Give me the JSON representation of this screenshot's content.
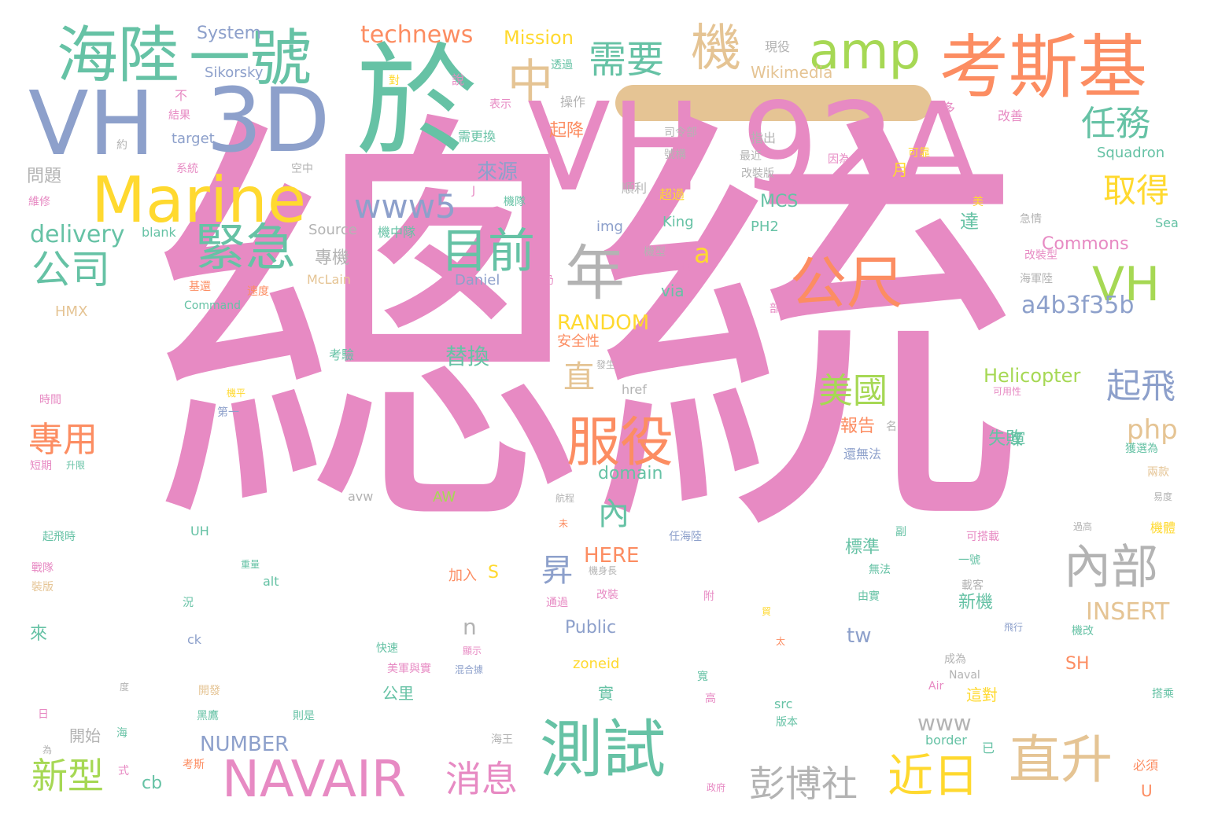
{
  "palette": {
    "pink": "#e78ac3",
    "green": "#66c2a5",
    "blue": "#8da0cb",
    "orange": "#fc8d62",
    "yellow": "#ffd92f",
    "lime": "#a6d854",
    "tan": "#e5c494",
    "gray": "#b3b3b3",
    "background": "#ffffff"
  },
  "words": [
    {
      "id": "zongtong",
      "text": "總統",
      "c": "pink"
    },
    {
      "id": "vh92a",
      "text": "VH 92A",
      "c": "pink"
    },
    {
      "id": "yu",
      "text": "於",
      "c": "green"
    },
    {
      "id": "vh",
      "text": "VH",
      "c": "blue"
    },
    {
      "id": "3d",
      "text": "3D",
      "c": "blue"
    },
    {
      "id": "haelu",
      "text": "海陸",
      "c": "green"
    },
    {
      "id": "yihao",
      "text": "一號",
      "c": "green"
    },
    {
      "id": "kaosiji",
      "text": "考斯基",
      "c": "orange"
    },
    {
      "id": "marine",
      "text": "Marine",
      "c": "yellow"
    },
    {
      "id": "amp",
      "text": "amp",
      "c": "lime"
    },
    {
      "id": "ji",
      "text": "機",
      "c": "tan"
    },
    {
      "id": "zhong",
      "text": "中",
      "c": "tan"
    },
    {
      "id": "xuyao",
      "text": "需要",
      "c": "green"
    },
    {
      "id": "technews",
      "text": "technews",
      "c": "orange"
    },
    {
      "id": "mission",
      "text": "Mission",
      "c": "yellow"
    },
    {
      "id": "system",
      "text": "System",
      "c": "blue"
    },
    {
      "id": "jinji",
      "text": "緊急",
      "c": "green"
    },
    {
      "id": "www5",
      "text": "www5",
      "c": "blue"
    },
    {
      "id": "mugian",
      "text": "目前",
      "c": "green"
    },
    {
      "id": "nian",
      "text": "年",
      "c": "gray"
    },
    {
      "id": "gongchi",
      "text": "公尺",
      "c": "orange"
    },
    {
      "id": "vh2",
      "text": "VH",
      "c": "lime"
    },
    {
      "id": "renwu",
      "text": "任務",
      "c": "green"
    },
    {
      "id": "qude",
      "text": "取得",
      "c": "yellow"
    },
    {
      "id": "gongsi",
      "text": "公司",
      "c": "green"
    },
    {
      "id": "delivery",
      "text": "delivery",
      "c": "green"
    },
    {
      "id": "a",
      "text": "a",
      "c": "yellow"
    },
    {
      "id": "laiyuan",
      "text": "來源",
      "c": "blue"
    },
    {
      "id": "a4b3f35b",
      "text": "a4b3f35b",
      "c": "blue"
    },
    {
      "id": "neibu",
      "text": "內部",
      "c": "gray"
    },
    {
      "id": "fuyi",
      "text": "服役",
      "c": "orange"
    },
    {
      "id": "cesi",
      "text": "測試",
      "c": "green"
    },
    {
      "id": "navair",
      "text": "NAVAIR",
      "c": "pink"
    },
    {
      "id": "xiaoxi",
      "text": "消息",
      "c": "pink"
    },
    {
      "id": "pengbo",
      "text": "彭博社",
      "c": "gray"
    },
    {
      "id": "jinri",
      "text": "近日",
      "c": "yellow"
    },
    {
      "id": "zhisheng",
      "text": "直升",
      "c": "tan"
    },
    {
      "id": "xinxing",
      "text": "新型",
      "c": "lime"
    },
    {
      "id": "zhuanyong",
      "text": "專用",
      "c": "orange"
    },
    {
      "id": "meiguo",
      "text": "美國",
      "c": "lime"
    },
    {
      "id": "qifei",
      "text": "起飛",
      "c": "blue"
    },
    {
      "id": "php",
      "text": "php",
      "c": "tan"
    },
    {
      "id": "random",
      "text": "RANDOM",
      "c": "yellow"
    },
    {
      "id": "zhi",
      "text": "直",
      "c": "tan"
    },
    {
      "id": "nei",
      "text": "內",
      "c": "green"
    },
    {
      "id": "sheng",
      "text": "昇",
      "c": "blue"
    },
    {
      "id": "tihuan",
      "text": "替換",
      "c": "green"
    },
    {
      "id": "domain",
      "text": "domain",
      "c": "green"
    },
    {
      "id": "helicopter",
      "text": "Helicopter",
      "c": "lime"
    },
    {
      "id": "insert",
      "text": "INSERT",
      "c": "tan"
    },
    {
      "id": "here",
      "text": "HERE",
      "c": "orange"
    },
    {
      "id": "number",
      "text": "NUMBER",
      "c": "blue"
    },
    {
      "id": "cb",
      "text": "cb",
      "c": "green"
    },
    {
      "id": "tw",
      "text": "tw",
      "c": "blue"
    },
    {
      "id": "www",
      "text": "www",
      "c": "gray"
    },
    {
      "id": "commons",
      "text": "Commons",
      "c": "pink"
    },
    {
      "id": "wikimedia",
      "text": "Wikimedia",
      "c": "tan"
    },
    {
      "id": "squadron",
      "text": "Squadron",
      "c": "green"
    },
    {
      "id": "public",
      "text": "Public",
      "c": "blue"
    },
    {
      "id": "zoneid",
      "text": "zoneid",
      "c": "yellow"
    },
    {
      "id": "sikorsky",
      "text": "Sikorsky",
      "c": "blue"
    },
    {
      "id": "target",
      "text": "target",
      "c": "blue"
    },
    {
      "id": "source",
      "text": "Source",
      "c": "gray"
    },
    {
      "id": "blank",
      "text": "blank",
      "c": "green"
    },
    {
      "id": "mcclain",
      "text": "McLain",
      "c": "tan"
    },
    {
      "id": "daniel",
      "text": "Daniel",
      "c": "blue"
    },
    {
      "id": "via",
      "text": "via",
      "c": "green"
    },
    {
      "id": "mcs",
      "text": "MCS",
      "c": "green"
    },
    {
      "id": "king",
      "text": "King",
      "c": "green"
    },
    {
      "id": "img",
      "text": "img",
      "c": "blue"
    },
    {
      "id": "ph2",
      "text": "PH2",
      "c": "green"
    },
    {
      "id": "hmx",
      "text": "HMX",
      "c": "tan"
    },
    {
      "id": "command",
      "text": "Command",
      "c": "green"
    },
    {
      "id": "href",
      "text": "href",
      "c": "gray"
    },
    {
      "id": "uh",
      "text": "UH",
      "c": "green"
    },
    {
      "id": "avw",
      "text": "avw",
      "c": "gray"
    },
    {
      "id": "aw",
      "text": "AW",
      "c": "lime"
    },
    {
      "id": "alt",
      "text": "alt",
      "c": "green"
    },
    {
      "id": "ck",
      "text": "ck",
      "c": "blue"
    },
    {
      "id": "src",
      "text": "src",
      "c": "green"
    },
    {
      "id": "border",
      "text": "border",
      "c": "green"
    },
    {
      "id": "sh",
      "text": "SH",
      "c": "orange"
    },
    {
      "id": "sea",
      "text": "Sea",
      "c": "green"
    },
    {
      "id": "n",
      "text": "n",
      "c": "gray"
    },
    {
      "id": "s",
      "text": "S",
      "c": "yellow"
    },
    {
      "id": "air",
      "text": "Air",
      "c": "pink"
    },
    {
      "id": "naval",
      "text": "Naval",
      "c": "gray"
    },
    {
      "id": "u",
      "text": "U",
      "c": "orange"
    },
    {
      "id": "wenti",
      "text": "問題",
      "c": "gray"
    },
    {
      "id": "zhuanji",
      "text": "專機",
      "c": "gray"
    },
    {
      "id": "qijiang",
      "text": "起降",
      "c": "orange"
    },
    {
      "id": "yue",
      "text": "月",
      "c": "yellow"
    },
    {
      "id": "da",
      "text": "達",
      "c": "green"
    },
    {
      "id": "baogao",
      "text": "報告",
      "c": "orange"
    },
    {
      "id": "shibai",
      "text": "失敗",
      "c": "green"
    },
    {
      "id": "jun",
      "text": "軍",
      "c": "green"
    },
    {
      "id": "gongli",
      "text": "公里",
      "c": "green"
    },
    {
      "id": "biaozhun",
      "text": "標準",
      "c": "green"
    },
    {
      "id": "xinji",
      "text": "新機",
      "c": "green"
    },
    {
      "id": "zhedui",
      "text": "這對",
      "c": "yellow"
    },
    {
      "id": "lai",
      "text": "來",
      "c": "green"
    },
    {
      "id": "kaishi",
      "text": "開始",
      "c": "gray"
    },
    {
      "id": "anquanxing",
      "text": "安全性",
      "c": "orange"
    },
    {
      "id": "kaoyan",
      "text": "考驗",
      "c": "green"
    },
    {
      "id": "jiaru",
      "text": "加入",
      "c": "orange"
    },
    {
      "id": "shi",
      "text": "實",
      "c": "green"
    },
    {
      "id": "xiantian",
      "text": "現役",
      "c": "gray"
    },
    {
      "id": "caozuo",
      "text": "操作",
      "c": "gray"
    },
    {
      "id": "gengduo",
      "text": "更多",
      "c": "pink"
    },
    {
      "id": "gaishan",
      "text": "改善",
      "c": "pink"
    },
    {
      "id": "xugenghuan",
      "text": "需更換",
      "c": "green"
    },
    {
      "id": "zhichu",
      "text": "指出",
      "c": "gray"
    },
    {
      "id": "zuijin",
      "text": "最近",
      "c": "gray"
    },
    {
      "id": "gaizhuangban",
      "text": "改裝版",
      "c": "gray"
    },
    {
      "id": "shunli",
      "text": "順利",
      "c": "gray"
    },
    {
      "id": "chaoguo",
      "text": "超過",
      "c": "yellow"
    },
    {
      "id": "jiudui",
      "text": "機隊",
      "c": "green"
    },
    {
      "id": "jizhongdui",
      "text": "機中隊",
      "c": "green"
    },
    {
      "id": "jixing",
      "text": "機型",
      "c": "gray"
    },
    {
      "id": "gaizhuangxing",
      "text": "改裝型",
      "c": "pink"
    },
    {
      "id": "haijunlu",
      "text": "海軍陸",
      "c": "gray"
    },
    {
      "id": "jiqing",
      "text": "急情",
      "c": "gray"
    },
    {
      "id": "mei",
      "text": "美",
      "c": "yellow"
    },
    {
      "id": "yinwei",
      "text": "因為",
      "c": "pink"
    },
    {
      "id": "kekao",
      "text": "可靠",
      "c": "yellow"
    },
    {
      "id": "silingbu",
      "text": "司令部",
      "c": "gray"
    },
    {
      "id": "haogou",
      "text": "號構",
      "c": "gray"
    },
    {
      "id": "toushi",
      "text": "透過",
      "c": "green"
    },
    {
      "id": "biaoshi",
      "text": "表示",
      "c": "pink"
    },
    {
      "id": "jieguo",
      "text": "結果",
      "c": "pink"
    },
    {
      "id": "xitong",
      "text": "系統",
      "c": "pink"
    },
    {
      "id": "weixiu",
      "text": "維修",
      "c": "pink"
    },
    {
      "id": "kongzhong",
      "text": "空中",
      "c": "gray"
    },
    {
      "id": "shuo",
      "text": "說",
      "c": "pink"
    },
    {
      "id": "dui",
      "text": "對",
      "c": "yellow"
    },
    {
      "id": "bu",
      "text": "不",
      "c": "pink"
    },
    {
      "id": "yue2",
      "text": "約",
      "c": "gray"
    },
    {
      "id": "shijian",
      "text": "時間",
      "c": "pink"
    },
    {
      "id": "duanqi",
      "text": "短期",
      "c": "pink"
    },
    {
      "id": "shengxian",
      "text": "升限",
      "c": "green"
    },
    {
      "id": "qifeishi",
      "text": "起飛時",
      "c": "green"
    },
    {
      "id": "zhandui",
      "text": "戰隊",
      "c": "pink"
    },
    {
      "id": "zhuangban",
      "text": "裝版",
      "c": "tan"
    },
    {
      "id": "jihuan",
      "text": "基還",
      "c": "orange"
    },
    {
      "id": "sudu",
      "text": "速度",
      "c": "orange"
    },
    {
      "id": "diyi",
      "text": "第一",
      "c": "blue"
    },
    {
      "id": "jiping",
      "text": "機平",
      "c": "yellow"
    },
    {
      "id": "fasheng",
      "text": "發生",
      "c": "gray"
    },
    {
      "id": "gaoyi",
      "text": "高",
      "c": "pink"
    },
    {
      "id": "kuan",
      "text": "寬",
      "c": "green"
    },
    {
      "id": "hangcheng",
      "text": "航程",
      "c": "gray"
    },
    {
      "id": "haiwang",
      "text": "海王",
      "c": "gray"
    },
    {
      "id": "zhengfu",
      "text": "政府",
      "c": "pink"
    },
    {
      "id": "kaifa",
      "text": "開發",
      "c": "tan"
    },
    {
      "id": "heiying",
      "text": "黑鷹",
      "c": "green"
    },
    {
      "id": "zeshi",
      "text": "則是",
      "c": "green"
    },
    {
      "id": "banben",
      "text": "版本",
      "c": "green"
    },
    {
      "id": "meijunyushi",
      "text": "美軍與實",
      "c": "pink"
    },
    {
      "id": "kuaisu",
      "text": "快速",
      "c": "green"
    },
    {
      "id": "xianshi",
      "text": "顯示",
      "c": "pink"
    },
    {
      "id": "huanhe",
      "text": "混合據",
      "c": "blue"
    },
    {
      "id": "chengwei",
      "text": "成為",
      "c": "gray"
    },
    {
      "id": "feixing",
      "text": "飛行",
      "c": "blue"
    },
    {
      "id": "jigai",
      "text": "機改",
      "c": "green"
    },
    {
      "id": "daxingke",
      "text": "載客",
      "c": "gray"
    },
    {
      "id": "youshi",
      "text": "由實",
      "c": "green"
    },
    {
      "id": "wufa",
      "text": "無法",
      "c": "green"
    },
    {
      "id": "fu",
      "text": "副",
      "c": "green"
    },
    {
      "id": "yihao2",
      "text": "一號",
      "c": "green"
    },
    {
      "id": "kedazai",
      "text": "可搭載",
      "c": "pink"
    },
    {
      "id": "guogao",
      "text": "過高",
      "c": "gray"
    },
    {
      "id": "jiti",
      "text": "機體",
      "c": "yellow"
    },
    {
      "id": "yidu",
      "text": "易度",
      "c": "gray"
    },
    {
      "id": "liangkuan",
      "text": "兩款",
      "c": "tan"
    },
    {
      "id": "huodeiwei",
      "text": "獲選為",
      "c": "green"
    },
    {
      "id": "keyongxing",
      "text": "可用性",
      "c": "pink"
    },
    {
      "id": "huanwufa",
      "text": "還無法",
      "c": "blue"
    },
    {
      "id": "ming",
      "text": "名",
      "c": "gray"
    },
    {
      "id": "bixu",
      "text": "必須",
      "c": "orange"
    },
    {
      "id": "dacheng",
      "text": "搭乘",
      "c": "green"
    },
    {
      "id": "yi",
      "text": "已",
      "c": "green"
    },
    {
      "id": "kaosi",
      "text": "考斯",
      "c": "orange"
    },
    {
      "id": "shi2",
      "text": "式",
      "c": "pink"
    },
    {
      "id": "wei",
      "text": "為",
      "c": "gray"
    },
    {
      "id": "ri",
      "text": "日",
      "c": "pink"
    },
    {
      "id": "du",
      "text": "度",
      "c": "gray"
    },
    {
      "id": "zhong2",
      "text": "重量",
      "c": "green"
    },
    {
      "id": "kuang",
      "text": "況",
      "c": "green"
    },
    {
      "id": "gaizhuang",
      "text": "改裝",
      "c": "pink"
    },
    {
      "id": "tongguo",
      "text": "通過",
      "c": "pink"
    },
    {
      "id": "jishenchang",
      "text": "機身長",
      "c": "gray"
    },
    {
      "id": "fu2",
      "text": "附",
      "c": "pink"
    },
    {
      "id": "tai",
      "text": "太",
      "c": "orange"
    },
    {
      "id": "mu",
      "text": "未",
      "c": "orange"
    },
    {
      "id": "renhailu",
      "text": "任海陸",
      "c": "blue"
    },
    {
      "id": "reng",
      "text": "仍",
      "c": "pink"
    },
    {
      "id": "gongji",
      "text": "公噸",
      "c": "pink"
    },
    {
      "id": "bu2",
      "text": "部",
      "c": "pink"
    },
    {
      "id": "j",
      "text": "J",
      "c": "pink"
    },
    {
      "id": "hai",
      "text": "海",
      "c": "green"
    },
    {
      "id": "du2",
      "text": "貿",
      "c": "yellow"
    }
  ]
}
